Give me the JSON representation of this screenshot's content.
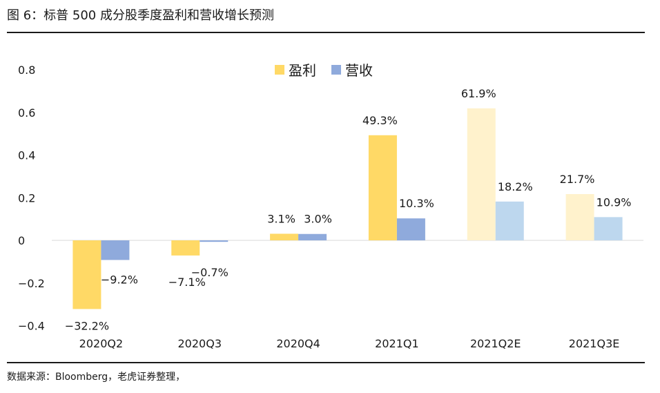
{
  "figure": {
    "title": "图 6：标普 500 成分股季度盈利和营收增长预测",
    "source": "数据来源：Bloomberg，老虎证券整理，"
  },
  "chart_data": {
    "type": "bar",
    "categories": [
      "2020Q2",
      "2020Q3",
      "2020Q4",
      "2021Q1",
      "2021Q2E",
      "2021Q3E"
    ],
    "estimated_categories": [
      "2021Q2E",
      "2021Q3E"
    ],
    "series": [
      {
        "name": "盈利",
        "values": [
          -0.322,
          -0.071,
          0.031,
          0.493,
          0.619,
          0.217
        ],
        "labels": [
          "−32.2%",
          "−7.1%",
          "3.1%",
          "49.3%",
          "61.9%",
          "21.7%"
        ],
        "color": "#FFD966",
        "estimate_color": "#FFF2CC"
      },
      {
        "name": "营收",
        "values": [
          -0.092,
          -0.007,
          0.03,
          0.103,
          0.182,
          0.109
        ],
        "labels": [
          "−9.2%",
          "−0.7%",
          "3.0%",
          "10.3%",
          "18.2%",
          "10.9%"
        ],
        "color": "#8FAADC",
        "estimate_color": "#BDD7EE"
      }
    ],
    "y_ticks": [
      "0.8",
      "0.6",
      "0.4",
      "0.2",
      "0",
      "−0.2",
      "−0.4"
    ],
    "y_tick_values": [
      0.8,
      0.6,
      0.4,
      0.2,
      0,
      -0.2,
      -0.4
    ],
    "ylim": [
      -0.4,
      0.8
    ],
    "legend_position": "top-center",
    "grid": false
  }
}
